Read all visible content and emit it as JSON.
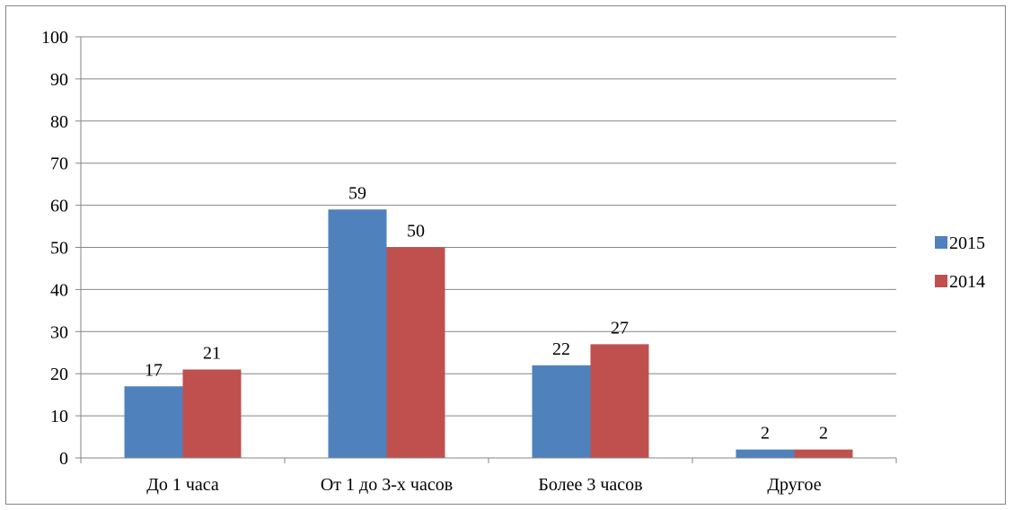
{
  "chart_data": {
    "type": "bar",
    "categories": [
      "До 1 часа",
      "От 1 до 3-х часов",
      "Более 3 часов",
      "Другое"
    ],
    "series": [
      {
        "name": "2015",
        "values": [
          17,
          59,
          22,
          2
        ],
        "color": "#4F81BD"
      },
      {
        "name": "2014",
        "values": [
          21,
          50,
          27,
          2
        ],
        "color": "#C0504D"
      }
    ],
    "title": "",
    "xlabel": "",
    "ylabel": "",
    "ylim": [
      0,
      100
    ],
    "yticks": [
      0,
      10,
      20,
      30,
      40,
      50,
      60,
      70,
      80,
      90,
      100
    ],
    "grid": true,
    "data_labels": true,
    "legend_position": "right"
  }
}
